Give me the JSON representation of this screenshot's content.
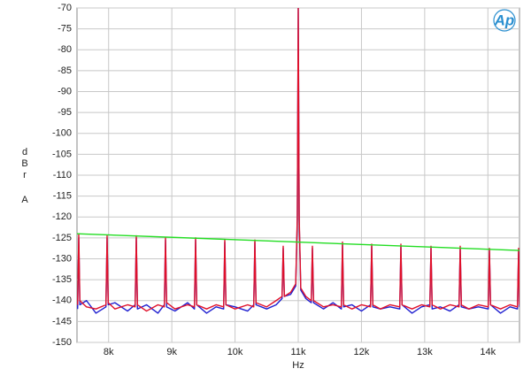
{
  "chart_data": {
    "type": "line",
    "logo": "Ap",
    "xlabel": "Hz",
    "ylabel": [
      "d",
      "B",
      "r",
      "A"
    ],
    "xlim": [
      7500,
      14500
    ],
    "ylim": [
      -150,
      -70
    ],
    "grid": true,
    "xticks": [
      {
        "value": 8000,
        "label": "8k"
      },
      {
        "value": 9000,
        "label": "9k"
      },
      {
        "value": 10000,
        "label": "10k"
      },
      {
        "value": 11000,
        "label": "11k"
      },
      {
        "value": 12000,
        "label": "12k"
      },
      {
        "value": 13000,
        "label": "13k"
      },
      {
        "value": 14000,
        "label": "14k"
      }
    ],
    "yticks": [
      -70,
      -75,
      -80,
      -85,
      -90,
      -95,
      -100,
      -105,
      -110,
      -115,
      -120,
      -125,
      -130,
      -135,
      -140,
      -145,
      -150
    ],
    "x": [
      7510,
      7528,
      7545,
      7650,
      7800,
      7958,
      7976,
      7994,
      8100,
      8300,
      8420,
      8438,
      8456,
      8600,
      8780,
      8882,
      8900,
      8918,
      9050,
      9250,
      9358,
      9376,
      9394,
      9550,
      9700,
      9820,
      9838,
      9856,
      10000,
      10200,
      10296,
      10314,
      10332,
      10500,
      10650,
      10744,
      10762,
      10780,
      10880,
      10960,
      10985,
      11000,
      11015,
      11040,
      11120,
      11206,
      11224,
      11242,
      11400,
      11550,
      11682,
      11700,
      11718,
      11850,
      12000,
      12144,
      12162,
      12180,
      12300,
      12450,
      12606,
      12624,
      12642,
      12800,
      12950,
      13082,
      13100,
      13118,
      13250,
      13400,
      13544,
      13562,
      13580,
      13700,
      13850,
      14006,
      14024,
      14042,
      14200,
      14350,
      14468,
      14486,
      14500
    ],
    "series": [
      {
        "color": "#1f1fd0",
        "values": [
          -142,
          -125,
          -141,
          -140,
          -143,
          -141.5,
          -125,
          -141,
          -140.5,
          -142.5,
          -141,
          -125,
          -142,
          -141,
          -143,
          -141,
          -125.5,
          -141.5,
          -142.5,
          -140.5,
          -142,
          -125.5,
          -141,
          -143,
          -141.5,
          -142,
          -126,
          -141,
          -141.5,
          -142.5,
          -141,
          -126,
          -141,
          -142,
          -141,
          -139.5,
          -127.5,
          -139,
          -138.5,
          -136.5,
          -121,
          -70,
          -121,
          -137.5,
          -139.5,
          -140.5,
          -127.5,
          -140.5,
          -142,
          -140.5,
          -142,
          -126.5,
          -141.5,
          -141,
          -142.5,
          -141,
          -127,
          -141.5,
          -142,
          -141.5,
          -142,
          -127,
          -141,
          -143,
          -141.5,
          -141,
          -127.5,
          -142,
          -141.5,
          -142.5,
          -141,
          -127.5,
          -141.5,
          -142,
          -141.5,
          -142,
          -128,
          -141,
          -143,
          -141.5,
          -142,
          -128,
          -141.5
        ]
      },
      {
        "color": "#e0102a",
        "values": [
          -141,
          -124,
          -140,
          -141.5,
          -142,
          -141,
          -124.5,
          -140.5,
          -142,
          -141,
          -141.5,
          -124.5,
          -141,
          -142.5,
          -141,
          -141.5,
          -125,
          -140.5,
          -142,
          -141,
          -141.5,
          -125,
          -141,
          -142,
          -141,
          -141.5,
          -125.5,
          -141,
          -142,
          -141,
          -141.5,
          -125.5,
          -140.5,
          -141.5,
          -140,
          -139,
          -127,
          -139,
          -138,
          -136,
          -120,
          -70,
          -120,
          -137,
          -139,
          -140,
          -127,
          -140,
          -141.5,
          -141,
          -141.5,
          -126,
          -141,
          -142,
          -141,
          -141.5,
          -126.5,
          -141,
          -142,
          -141,
          -141.5,
          -126.5,
          -141,
          -142,
          -141,
          -141.5,
          -127,
          -141,
          -142,
          -141,
          -141.5,
          -127,
          -141,
          -142,
          -141,
          -141.5,
          -127.5,
          -141,
          -142,
          -141,
          -141.5,
          -127.5,
          -141
        ]
      },
      {
        "color": "#22dd22",
        "x": [
          7500,
          14500
        ],
        "values": [
          -124,
          -128
        ]
      }
    ]
  }
}
